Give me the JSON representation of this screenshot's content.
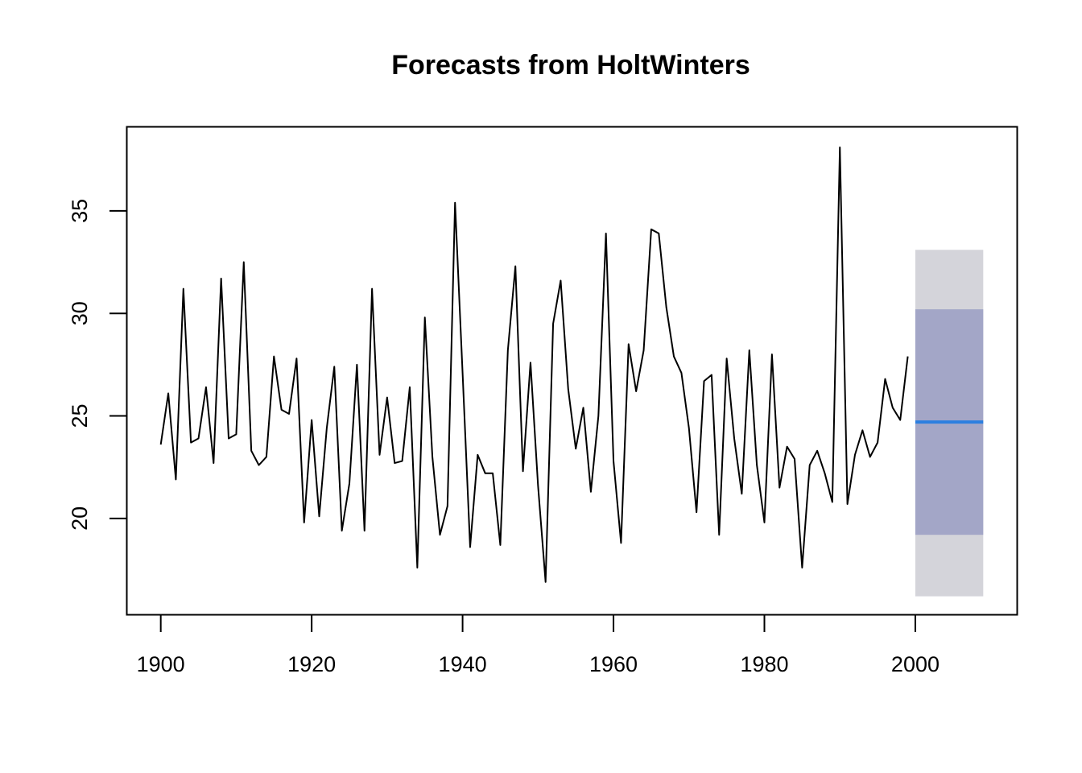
{
  "chart_data": {
    "type": "line",
    "title": "Forecasts from HoltWinters",
    "xlabel": "",
    "ylabel": "",
    "xlim": [
      1895.5,
      2013.5
    ],
    "ylim": [
      15.3,
      39.1
    ],
    "x_ticks": [
      1900,
      1920,
      1940,
      1960,
      1980,
      2000
    ],
    "y_ticks": [
      20,
      25,
      30,
      35
    ],
    "grid": false,
    "colors": {
      "series": "#000000",
      "forecast": "#2C7FE0",
      "band80": "#A3A6C7",
      "band95": "#D4D4DA"
    },
    "series": [
      {
        "x_start": 1900,
        "values": [
          23.6,
          26.1,
          21.9,
          31.2,
          23.7,
          23.9,
          26.4,
          22.7,
          31.7,
          23.9,
          24.1,
          32.5,
          23.3,
          22.6,
          23.0,
          27.9,
          25.3,
          25.1,
          27.8,
          19.8,
          24.8,
          20.1,
          24.4,
          27.4,
          19.4,
          21.7,
          27.5,
          19.4,
          31.2,
          23.1,
          25.9,
          22.7,
          22.8,
          26.4,
          17.6,
          29.8,
          23.0,
          19.2,
          20.6,
          35.4,
          27.1,
          18.6,
          23.1,
          22.2,
          22.2,
          18.7,
          28.2,
          32.3,
          22.3,
          27.6,
          21.6,
          16.9,
          29.5,
          31.6,
          26.3,
          23.4,
          25.4,
          21.3,
          25.0,
          33.9,
          22.8,
          18.8,
          28.5,
          26.2,
          28.2,
          34.1,
          33.9,
          30.3,
          27.9,
          27.1,
          24.4,
          20.3,
          26.7,
          27.0,
          19.2,
          27.8,
          23.9,
          21.2,
          28.2,
          22.6,
          19.8,
          28.0,
          21.5,
          23.5,
          22.9,
          17.6,
          22.6,
          23.3,
          22.2,
          20.8,
          38.1,
          20.7,
          23.1,
          24.3,
          23.0,
          23.7,
          26.8,
          25.4,
          24.8,
          27.9
        ]
      }
    ],
    "forecast": {
      "x": [
        2000,
        2009
      ],
      "mean": 24.7,
      "lo80": 19.2,
      "hi80": 30.2,
      "lo95": 16.2,
      "hi95": 33.1
    }
  }
}
